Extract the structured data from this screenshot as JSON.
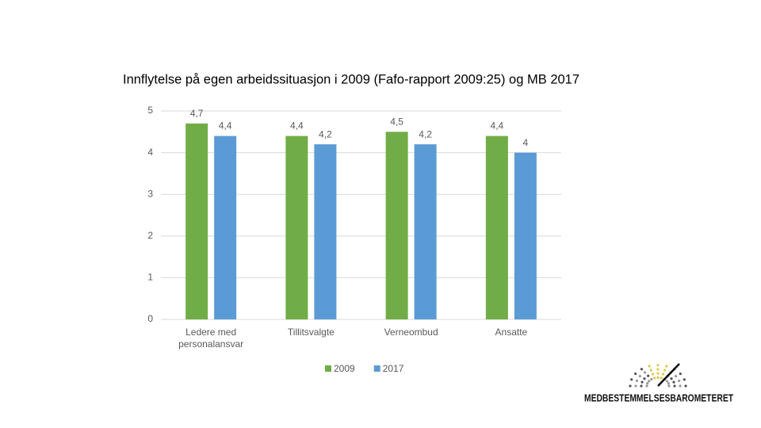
{
  "chart_data": {
    "type": "bar",
    "title": "Innflytelse på egen arbeidssituasjon i 2009 (Fafo-rapport 2009:25) og MB 2017",
    "categories": [
      "Ledere med personalansvar",
      "Tillitsvalgte",
      "Verneombud",
      "Ansatte"
    ],
    "series": [
      {
        "name": "2009",
        "color": "#70ad47",
        "values": [
          4.7,
          4.4,
          4.5,
          4.4
        ],
        "value_labels": [
          "4,7",
          "4,4",
          "4,5",
          "4,4"
        ]
      },
      {
        "name": "2017",
        "color": "#5b9bd5",
        "values": [
          4.4,
          4.2,
          4.2,
          4
        ],
        "value_labels": [
          "4,4",
          "4,2",
          "4,2",
          "4"
        ]
      }
    ],
    "ylim": [
      0,
      5
    ],
    "yticks": [
      0,
      1,
      2,
      3,
      4,
      5
    ],
    "grid": true,
    "legend": "bottom"
  },
  "logo": {
    "text": "MEDBESTEMMELSESBAROMETERET"
  }
}
